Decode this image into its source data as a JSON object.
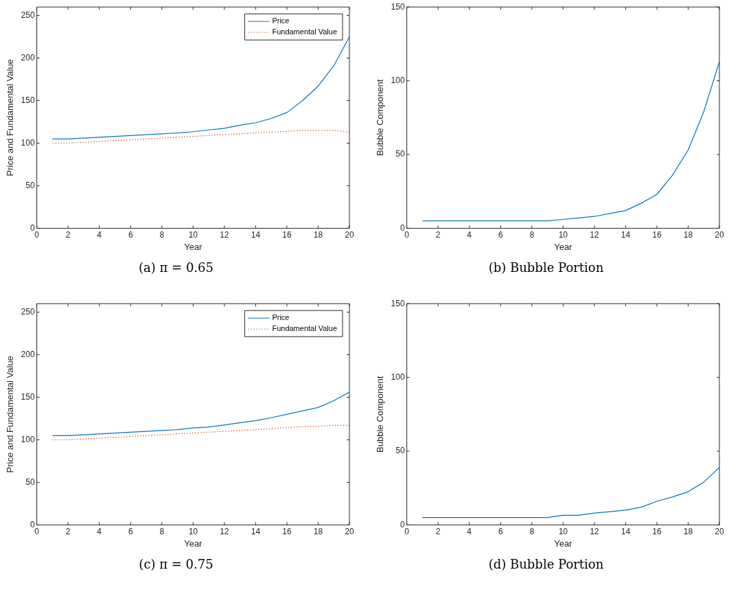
{
  "chart_data": [
    {
      "type": "line",
      "title": "(a) π = 0.65",
      "xlabel": "Year",
      "ylabel": "Price and Fundamental Value",
      "x": [
        1,
        2,
        3,
        4,
        5,
        6,
        7,
        8,
        9,
        10,
        11,
        12,
        13,
        14,
        15,
        16,
        17,
        18,
        19,
        20
      ],
      "xlim": [
        0,
        20
      ],
      "xticks": [
        0,
        2,
        4,
        6,
        8,
        10,
        12,
        14,
        16,
        18,
        20
      ],
      "ylim": [
        0,
        260
      ],
      "yticks": [
        0,
        50,
        100,
        150,
        200,
        250
      ],
      "grid": false,
      "legend": "top right",
      "marker": "none",
      "series": [
        {
          "name": "Price",
          "color": "#0072bd",
          "line_style": "solid",
          "values": [
            105,
            105,
            106,
            107,
            108,
            109,
            110,
            111,
            112,
            113.5,
            115.5,
            117.5,
            121,
            124,
            129,
            136,
            150,
            167,
            191,
            225
          ]
        },
        {
          "name": "Fundamental Value",
          "color": "#d95319",
          "line_style": "dotted",
          "values": [
            100,
            100,
            101,
            102,
            103,
            104,
            105,
            106,
            107,
            108,
            109,
            110,
            111,
            112,
            113,
            114,
            115,
            115,
            115,
            113
          ]
        }
      ]
    },
    {
      "type": "line",
      "title": "(b) Bubble Portion",
      "xlabel": "Year",
      "ylabel": "Bubble Component",
      "x": [
        1,
        2,
        3,
        4,
        5,
        6,
        7,
        8,
        9,
        10,
        11,
        12,
        13,
        14,
        15,
        16,
        17,
        18,
        19,
        20
      ],
      "xlim": [
        0,
        20
      ],
      "xticks": [
        0,
        2,
        4,
        6,
        8,
        10,
        12,
        14,
        16,
        18,
        20
      ],
      "ylim": [
        0,
        150
      ],
      "yticks": [
        0,
        50,
        100,
        150
      ],
      "grid": false,
      "legend": false,
      "marker": "none",
      "series": [
        {
          "color": "#0072bd",
          "line_style": "solid",
          "values": [
            5,
            5,
            5,
            5,
            5,
            5,
            5,
            5,
            5,
            6,
            7,
            8,
            10,
            12,
            17,
            23,
            36,
            53,
            79,
            113
          ]
        }
      ]
    },
    {
      "type": "line",
      "title": "(c) π = 0.75",
      "xlabel": "Year",
      "ylabel": "Price and Fundamental Value",
      "x": [
        1,
        2,
        3,
        4,
        5,
        6,
        7,
        8,
        9,
        10,
        11,
        12,
        13,
        14,
        15,
        16,
        17,
        18,
        19,
        20
      ],
      "xlim": [
        0,
        20
      ],
      "xticks": [
        0,
        2,
        4,
        6,
        8,
        10,
        12,
        14,
        16,
        18,
        20
      ],
      "ylim": [
        0,
        260
      ],
      "yticks": [
        0,
        50,
        100,
        150,
        200,
        250
      ],
      "grid": false,
      "legend": "top right",
      "marker": "none",
      "series": [
        {
          "name": "Price",
          "color": "#0072bd",
          "line_style": "solid",
          "values": [
            105,
            105,
            106,
            107,
            108,
            109,
            110,
            111,
            112,
            114,
            115,
            117.5,
            120,
            122.5,
            126,
            130,
            134,
            138,
            146,
            156
          ]
        },
        {
          "name": "Fundamental Value",
          "color": "#d95319",
          "line_style": "dotted",
          "values": [
            100,
            100,
            101,
            102,
            103,
            104,
            105,
            106,
            107,
            108,
            109,
            110,
            111,
            112,
            113,
            114.5,
            115.5,
            116,
            117,
            117
          ]
        }
      ]
    },
    {
      "type": "line",
      "title": "(d) Bubble Portion",
      "xlabel": "Year",
      "ylabel": "Bubble Component",
      "x": [
        1,
        2,
        3,
        4,
        5,
        6,
        7,
        8,
        9,
        10,
        11,
        12,
        13,
        14,
        15,
        16,
        17,
        18,
        19,
        20
      ],
      "xlim": [
        0,
        20
      ],
      "xticks": [
        0,
        2,
        4,
        6,
        8,
        10,
        12,
        14,
        16,
        18,
        20
      ],
      "ylim": [
        0,
        150
      ],
      "yticks": [
        0,
        50,
        100,
        150
      ],
      "grid": false,
      "legend": false,
      "marker": "none",
      "series": [
        {
          "color": "#0072bd",
          "line_style": "solid",
          "values": [
            5,
            5,
            5,
            5,
            5,
            5,
            5,
            5,
            5,
            6.5,
            6.5,
            8,
            9,
            10,
            12,
            16,
            19,
            22.5,
            29,
            39
          ]
        }
      ]
    }
  ]
}
